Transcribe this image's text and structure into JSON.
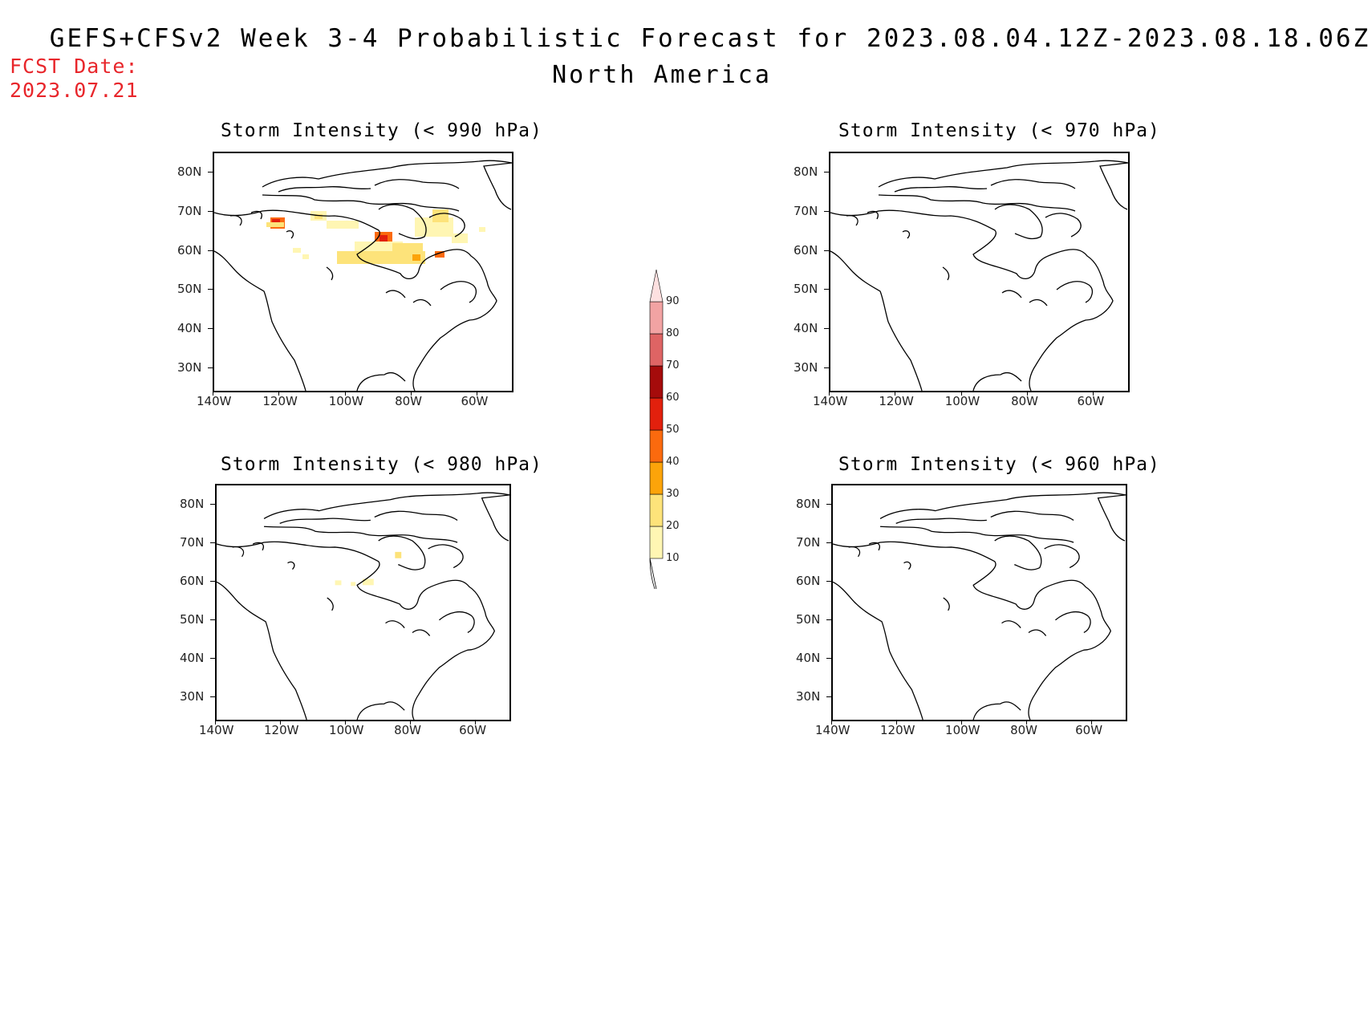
{
  "header": {
    "title_line1": "GEFS+CFSv2 Week 3-4 Probabilistic Forecast for 2023.08.04.12Z-2023.08.18.06Z",
    "title_line2": "North America",
    "fcst_label": "FCST Date:",
    "fcst_date": "2023.07.21"
  },
  "colors": {
    "fcst_text": "#e8262b",
    "bins": [
      "#fff6b3",
      "#fde37a",
      "#fca40a",
      "#fb6a0e",
      "#e2200d",
      "#a50b0b",
      "#de6464",
      "#f2a3a3",
      "#fde0e0"
    ]
  },
  "axes": {
    "lat_labels": [
      "80N",
      "70N",
      "60N",
      "50N",
      "40N",
      "30N"
    ],
    "lon_labels": [
      "140W",
      "120W",
      "100W",
      "80W",
      "60W"
    ]
  },
  "colorbar": {
    "labels": [
      "90",
      "80",
      "70",
      "60",
      "50",
      "40",
      "30",
      "20",
      "10"
    ]
  },
  "panels": [
    {
      "id": "p990",
      "title": "Storm Intensity (< 990 hPa)"
    },
    {
      "id": "p970",
      "title": "Storm Intensity (< 970 hPa)"
    },
    {
      "id": "p980",
      "title": "Storm Intensity (< 980 hPa)"
    },
    {
      "id": "p960",
      "title": "Storm Intensity (< 960 hPa)"
    }
  ]
}
